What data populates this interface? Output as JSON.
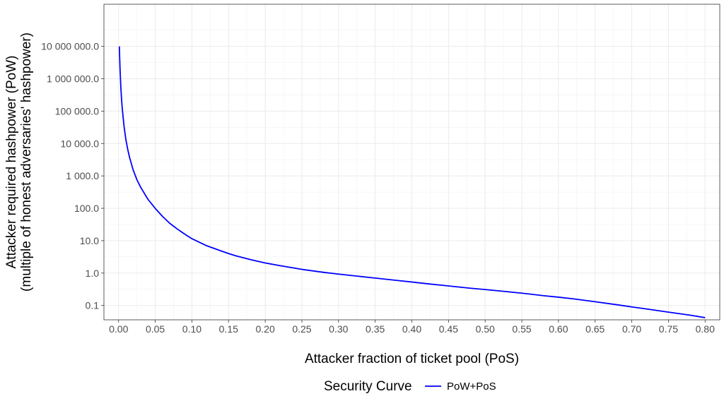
{
  "chart_data": {
    "type": "line",
    "xlabel": "Attacker fraction of ticket pool (PoS)",
    "ylabel_lines": [
      "Attacker required hashpower (PoW)",
      "(multiple of honest adversaries' hashpower)"
    ],
    "x_ticks": [
      "0.00",
      "0.05",
      "0.10",
      "0.15",
      "0.20",
      "0.25",
      "0.30",
      "0.35",
      "0.40",
      "0.45",
      "0.50",
      "0.55",
      "0.60",
      "0.65",
      "0.70",
      "0.75",
      "0.80"
    ],
    "y_ticks": [
      "0.1",
      "1.0",
      "10.0",
      "100.0",
      "1 000.0",
      "10 000.0",
      "100 000.0",
      "1 000 000.0",
      "10 000 000.0"
    ],
    "xlim": [
      -0.02,
      0.82
    ],
    "ylim": [
      0.036,
      200000000
    ],
    "y_scale": "log10",
    "grid": true,
    "legend": {
      "title": "Security Curve",
      "position": "bottom"
    },
    "series": [
      {
        "name": "PoW+PoS",
        "color": "#0000ff",
        "x": [
          0.001,
          0.0015,
          0.002,
          0.003,
          0.004,
          0.005,
          0.0075,
          0.01,
          0.0125,
          0.015,
          0.02,
          0.025,
          0.03,
          0.04,
          0.05,
          0.06,
          0.07,
          0.08,
          0.09,
          0.1,
          0.12,
          0.14,
          0.15,
          0.16,
          0.18,
          0.2,
          0.22,
          0.25,
          0.28,
          0.3,
          0.32,
          0.35,
          0.38,
          0.4,
          0.42,
          0.45,
          0.48,
          0.5,
          0.52,
          0.55,
          0.58,
          0.6,
          0.62,
          0.65,
          0.68,
          0.7,
          0.72,
          0.75,
          0.78,
          0.8
        ],
        "y": [
          10000000,
          4300000,
          1900000,
          580000,
          240000,
          120000,
          33000,
          13000,
          6500,
          3700,
          1500,
          760,
          450,
          190,
          99,
          56,
          34,
          23,
          16,
          11.5,
          7,
          4.8,
          4,
          3.4,
          2.6,
          2.05,
          1.7,
          1.3,
          1.05,
          0.93,
          0.83,
          0.7,
          0.59,
          0.53,
          0.47,
          0.4,
          0.34,
          0.31,
          0.28,
          0.24,
          0.2,
          0.18,
          0.16,
          0.13,
          0.105,
          0.09,
          0.078,
          0.062,
          0.05,
          0.042
        ]
      }
    ]
  }
}
